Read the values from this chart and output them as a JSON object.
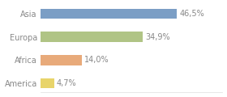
{
  "categories": [
    "Asia",
    "Europa",
    "Africa",
    "America"
  ],
  "values": [
    46.5,
    34.9,
    14.0,
    4.7
  ],
  "labels": [
    "46,5%",
    "34,9%",
    "14,0%",
    "4,7%"
  ],
  "bar_colors": [
    "#7b9ec5",
    "#b0c485",
    "#e8aa7a",
    "#e8d46a"
  ],
  "background_color": "#ffffff",
  "xlim": [
    0,
    62
  ],
  "bar_height": 0.45,
  "label_fontsize": 7.0,
  "tick_fontsize": 7.0,
  "label_color": "#888888",
  "tick_color": "#888888"
}
